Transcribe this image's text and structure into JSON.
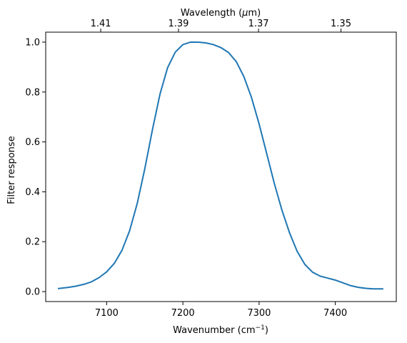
{
  "chart_data": {
    "type": "line",
    "xlabel": "Wavenumber (cm",
    "xlabel_sup": "−1",
    "xlabel_end": ")",
    "ylabel": "Filter response",
    "top_xlabel": "Wavelength (",
    "top_xlabel_mu": "μ",
    "top_xlabel_end": "m)",
    "xlim": [
      7020,
      7480
    ],
    "ylim": [
      -0.04,
      1.04
    ],
    "x_ticks": [
      7100,
      7200,
      7300,
      7400
    ],
    "x_tick_labels": [
      "7100",
      "7200",
      "7300",
      "7400"
    ],
    "y_ticks": [
      0.0,
      0.2,
      0.4,
      0.6,
      0.8,
      1.0
    ],
    "y_tick_labels": [
      "0.0",
      "0.2",
      "0.4",
      "0.6",
      "0.8",
      "1.0"
    ],
    "top_ticks_wavelength_um": [
      1.41,
      1.39,
      1.37,
      1.35
    ],
    "top_tick_labels": [
      "1.41",
      "1.39",
      "1.37",
      "1.35"
    ],
    "grid": false,
    "series": [
      {
        "color": "#1f77b4",
        "x": [
          7036,
          7050,
          7060,
          7070,
          7080,
          7090,
          7100,
          7110,
          7120,
          7130,
          7140,
          7150,
          7160,
          7170,
          7180,
          7190,
          7200,
          7210,
          7220,
          7230,
          7240,
          7250,
          7260,
          7270,
          7280,
          7290,
          7300,
          7310,
          7320,
          7330,
          7340,
          7350,
          7360,
          7370,
          7380,
          7390,
          7400,
          7410,
          7420,
          7430,
          7440,
          7450,
          7463
        ],
        "y": [
          0.012,
          0.017,
          0.022,
          0.029,
          0.039,
          0.056,
          0.079,
          0.113,
          0.165,
          0.243,
          0.352,
          0.492,
          0.648,
          0.792,
          0.898,
          0.96,
          0.99,
          1.0,
          1.0,
          0.997,
          0.99,
          0.978,
          0.958,
          0.922,
          0.862,
          0.778,
          0.672,
          0.553,
          0.433,
          0.326,
          0.235,
          0.161,
          0.109,
          0.078,
          0.062,
          0.054,
          0.046,
          0.035,
          0.024,
          0.017,
          0.013,
          0.011,
          0.011
        ]
      }
    ]
  }
}
